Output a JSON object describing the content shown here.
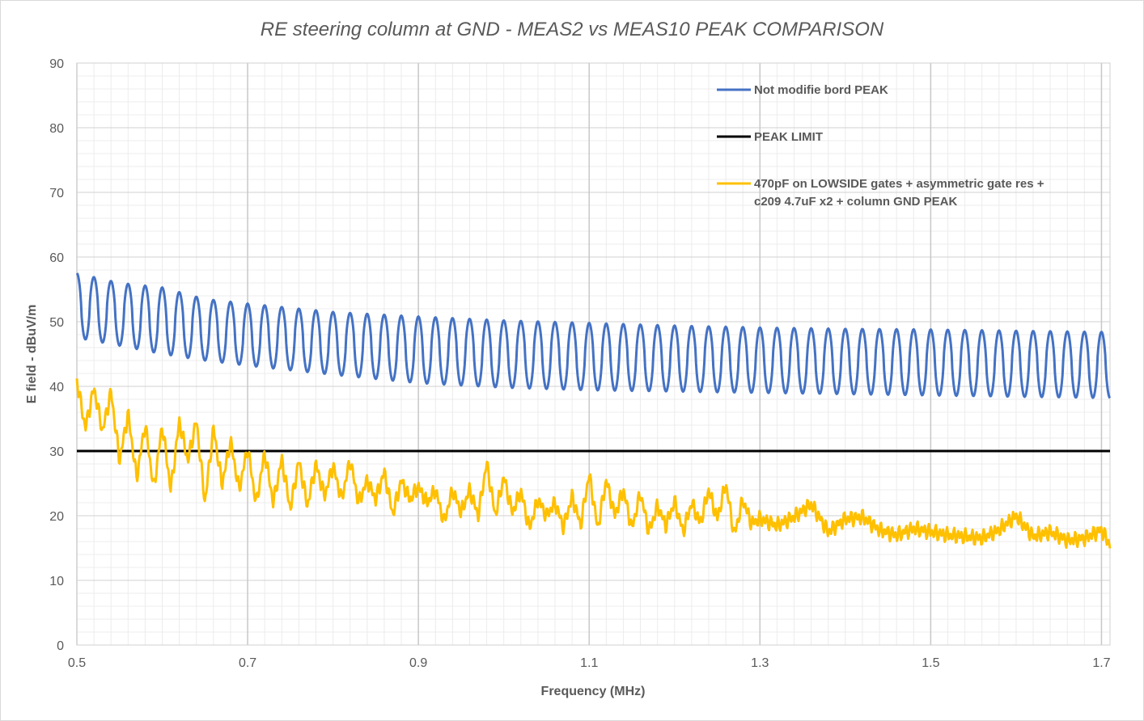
{
  "chart_data": {
    "type": "line",
    "title": "RE steering column  at GND - MEAS2 vs MEAS10  PEAK  COMPARISON",
    "xlabel": "Frequency (MHz)",
    "ylabel": "E field - dBuV/m",
    "xlim": [
      0.5,
      1.71
    ],
    "ylim": [
      0,
      90
    ],
    "x_ticks": [
      "0.5",
      "0.7",
      "0.9",
      "1.1",
      "1.3",
      "1.5",
      "1.7"
    ],
    "y_ticks": [
      "0",
      "10",
      "20",
      "30",
      "40",
      "50",
      "60",
      "70",
      "80",
      "90"
    ],
    "grid": true,
    "legend_position": "top-right inside",
    "series": [
      {
        "name": "Not modifie bord PEAK",
        "color": "#4472c4",
        "style": "oscillating",
        "period_mhz": 0.02,
        "x": [
          0.5,
          0.55,
          0.6,
          0.65,
          0.7,
          0.8,
          0.9,
          1.0,
          1.1,
          1.2,
          1.3,
          1.4,
          1.5,
          1.6,
          1.71
        ],
        "max": [
          57.5,
          56.0,
          55.3,
          53.5,
          52.8,
          51.5,
          50.8,
          50.2,
          49.8,
          49.4,
          49.1,
          48.9,
          48.8,
          48.6,
          48.4
        ],
        "min": [
          47.5,
          46.3,
          45.0,
          44.0,
          43.2,
          41.8,
          40.5,
          39.8,
          39.4,
          39.2,
          39.0,
          38.8,
          38.6,
          38.4,
          38.2
        ]
      },
      {
        "name": "PEAK LIMIT",
        "color": "#000000",
        "style": "flat",
        "x": [
          0.5,
          1.71
        ],
        "y": [
          30,
          30
        ]
      },
      {
        "name": "470pF on LOWSIDE gates + asymmetric gate res + c209 4.7uF x2 + column GND PEAK",
        "name_lines": [
          "470pF on LOWSIDE gates + asymmetric gate res +",
          "c209 4.7uF x2 + column GND PEAK"
        ],
        "color": "#ffc000",
        "style": "noisy",
        "x": [
          0.5,
          0.51,
          0.52,
          0.53,
          0.54,
          0.55,
          0.56,
          0.57,
          0.58,
          0.59,
          0.6,
          0.61,
          0.62,
          0.63,
          0.64,
          0.65,
          0.66,
          0.67,
          0.68,
          0.69,
          0.7,
          0.71,
          0.72,
          0.73,
          0.74,
          0.75,
          0.76,
          0.77,
          0.78,
          0.79,
          0.8,
          0.81,
          0.82,
          0.83,
          0.84,
          0.85,
          0.86,
          0.87,
          0.88,
          0.89,
          0.9,
          0.91,
          0.92,
          0.93,
          0.94,
          0.95,
          0.96,
          0.97,
          0.98,
          0.99,
          1.0,
          1.01,
          1.02,
          1.03,
          1.04,
          1.05,
          1.06,
          1.07,
          1.08,
          1.09,
          1.1,
          1.11,
          1.12,
          1.13,
          1.14,
          1.15,
          1.16,
          1.17,
          1.18,
          1.19,
          1.2,
          1.21,
          1.22,
          1.23,
          1.24,
          1.25,
          1.26,
          1.27,
          1.28,
          1.29,
          1.3,
          1.32,
          1.34,
          1.36,
          1.38,
          1.4,
          1.42,
          1.44,
          1.46,
          1.48,
          1.5,
          1.52,
          1.54,
          1.56,
          1.58,
          1.6,
          1.62,
          1.64,
          1.66,
          1.68,
          1.7,
          1.71
        ],
        "y": [
          40.8,
          33.5,
          39.8,
          33.0,
          39.2,
          28.5,
          35.8,
          25.8,
          34.2,
          24.2,
          34.0,
          24.0,
          34.6,
          28.5,
          34.8,
          22.0,
          33.6,
          24.8,
          31.6,
          24.0,
          30.5,
          21.8,
          29.8,
          22.0,
          28.8,
          21.0,
          28.6,
          21.5,
          28.0,
          23.0,
          27.8,
          22.5,
          28.6,
          22.0,
          25.5,
          22.5,
          26.8,
          20.2,
          25.5,
          22.5,
          24.5,
          22.0,
          24.0,
          19.0,
          24.0,
          20.5,
          24.0,
          20.0,
          28.2,
          20.0,
          26.0,
          20.5,
          23.8,
          18.0,
          22.5,
          20.0,
          22.0,
          18.2,
          23.0,
          18.5,
          26.5,
          18.0,
          25.5,
          20.0,
          24.0,
          18.0,
          23.5,
          17.5,
          21.5,
          18.5,
          22.2,
          17.5,
          22.0,
          18.8,
          24.0,
          19.5,
          25.0,
          17.0,
          22.5,
          18.8,
          19.5,
          18.5,
          19.8,
          21.8,
          17.5,
          19.5,
          19.8,
          17.8,
          17.0,
          18.0,
          17.5,
          17.0,
          16.8,
          16.5,
          17.8,
          20.0,
          16.8,
          17.5,
          16.2,
          16.5,
          17.8,
          15.5
        ]
      }
    ]
  }
}
